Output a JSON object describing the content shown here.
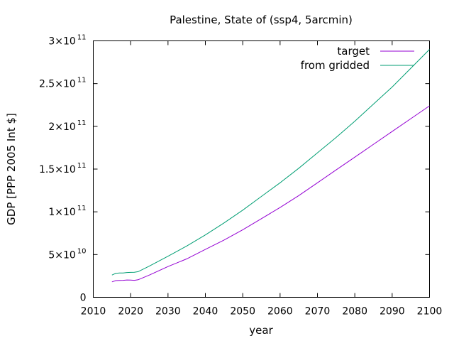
{
  "chart_data": {
    "type": "line",
    "title": "Palestine, State of (ssp4, 5arcmin)",
    "xlabel": "year",
    "ylabel": "GDP [PPP 2005 Int $]",
    "xlim": [
      2010,
      2100
    ],
    "ylim": [
      0,
      300000000000
    ],
    "x_ticks": [
      "2010",
      "2020",
      "2030",
      "2040",
      "2050",
      "2060",
      "2070",
      "2080",
      "2090",
      "2100"
    ],
    "y_ticks": [
      {
        "value": 0,
        "mantissa": "0",
        "exponent": ""
      },
      {
        "value": 50000000000,
        "mantissa": "5×10",
        "exponent": "10"
      },
      {
        "value": 100000000000,
        "mantissa": "1×10",
        "exponent": "11"
      },
      {
        "value": 150000000000,
        "mantissa": "1.5×10",
        "exponent": "11"
      },
      {
        "value": 200000000000,
        "mantissa": "2×10",
        "exponent": "11"
      },
      {
        "value": 250000000000,
        "mantissa": "2.5×10",
        "exponent": "11"
      },
      {
        "value": 300000000000,
        "mantissa": "3×10",
        "exponent": "11"
      }
    ],
    "legend_position": "top-right",
    "grid": false,
    "x": [
      2015,
      2016,
      2017,
      2018,
      2019,
      2020,
      2021,
      2022,
      2025,
      2030,
      2035,
      2040,
      2045,
      2050,
      2055,
      2060,
      2065,
      2070,
      2075,
      2080,
      2085,
      2090,
      2095,
      2100
    ],
    "series": [
      {
        "name": "target",
        "color": "#9400d3",
        "values": [
          18000000000,
          19500000000,
          19800000000,
          19900000000,
          20300000000,
          20100000000,
          19900000000,
          20500000000,
          26000000000,
          36000000000,
          45000000000,
          56000000000,
          67000000000,
          79000000000,
          92000000000,
          105000000000,
          119000000000,
          134000000000,
          149000000000,
          164000000000,
          179000000000,
          194000000000,
          209000000000,
          224000000000
        ]
      },
      {
        "name": "from gridded",
        "color": "#009e73",
        "values": [
          26000000000,
          28000000000,
          28500000000,
          28500000000,
          29000000000,
          29200000000,
          29300000000,
          30000000000,
          36500000000,
          48000000000,
          60000000000,
          73000000000,
          87000000000,
          102000000000,
          118000000000,
          134000000000,
          151000000000,
          169000000000,
          187000000000,
          206000000000,
          226000000000,
          246000000000,
          268000000000,
          290000000000
        ]
      }
    ]
  }
}
